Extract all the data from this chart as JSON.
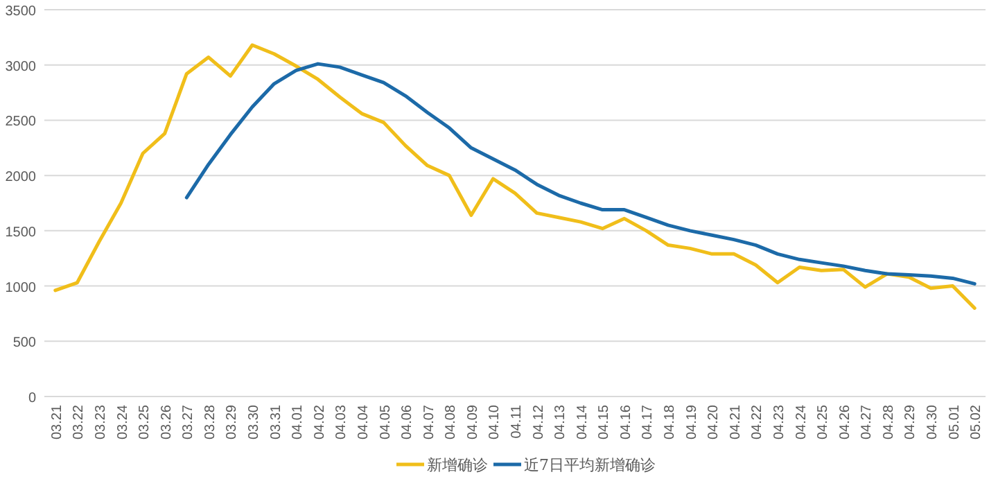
{
  "chart_data": {
    "type": "line",
    "categories": [
      "03.21",
      "03.22",
      "03.23",
      "03.24",
      "03.25",
      "03.26",
      "03.27",
      "03.28",
      "03.29",
      "03.30",
      "03.31",
      "04.01",
      "04.02",
      "04.03",
      "04.04",
      "04.05",
      "04.06",
      "04.07",
      "04.08",
      "04.09",
      "04.10",
      "04.11",
      "04.12",
      "04.13",
      "04.14",
      "04.15",
      "04.16",
      "04.17",
      "04.18",
      "04.19",
      "04.20",
      "04.21",
      "04.22",
      "04.23",
      "04.24",
      "04.25",
      "04.26",
      "04.27",
      "04.28",
      "04.29",
      "04.30",
      "05.01",
      "05.02"
    ],
    "series": [
      {
        "name": "新增确诊",
        "color": "#f0be1a",
        "values": [
          960,
          1030,
          1400,
          1750,
          2200,
          2380,
          2920,
          3070,
          2900,
          3180,
          3100,
          2990,
          2870,
          2710,
          2560,
          2480,
          2270,
          2090,
          2000,
          1640,
          1970,
          1840,
          1660,
          1620,
          1580,
          1520,
          1610,
          1500,
          1370,
          1340,
          1290,
          1290,
          1190,
          1030,
          1170,
          1140,
          1150,
          990,
          1110,
          1080,
          980,
          1000,
          800
        ]
      },
      {
        "name": "近7日平均新增确诊",
        "color": "#1c6aa8",
        "values": [
          null,
          null,
          null,
          null,
          null,
          null,
          1800,
          2100,
          2370,
          2620,
          2830,
          2950,
          3010,
          2980,
          2910,
          2840,
          2720,
          2570,
          2430,
          2250,
          2150,
          2050,
          1920,
          1820,
          1750,
          1690,
          1690,
          1620,
          1550,
          1500,
          1460,
          1420,
          1370,
          1290,
          1240,
          1210,
          1180,
          1140,
          1110,
          1100,
          1090,
          1070,
          1020
        ]
      }
    ],
    "ylim": [
      0,
      3500
    ],
    "yticks": [
      0,
      500,
      1000,
      1500,
      2000,
      2500,
      3000,
      3500
    ],
    "grid": "y",
    "legend": "bottom",
    "marker": "none",
    "line_style": "solid"
  }
}
